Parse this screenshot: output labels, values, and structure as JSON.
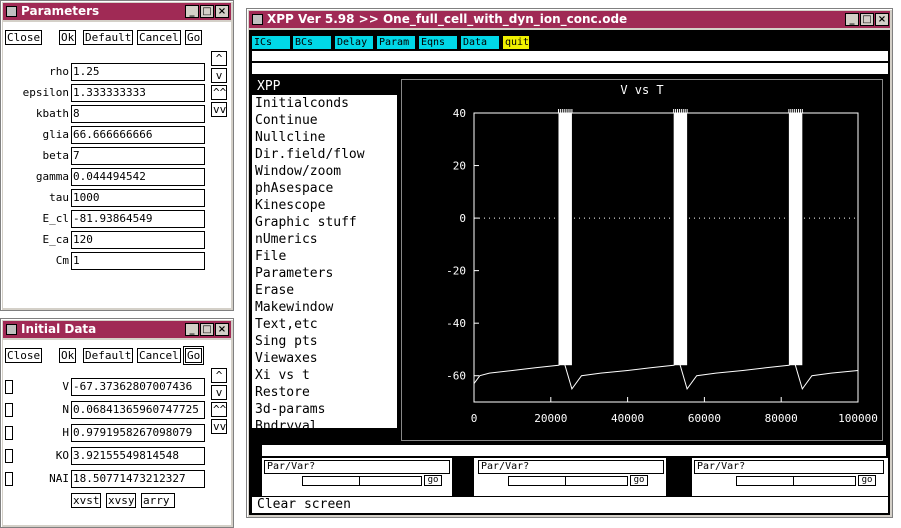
{
  "params_window": {
    "title": "Parameters",
    "buttons": {
      "close": "Close",
      "ok": "Ok",
      "default": "Default",
      "cancel": "Cancel",
      "go": "Go"
    },
    "scroll": {
      "up": "^",
      "down": "v",
      "page_up": "^^",
      "page_down": "vv"
    },
    "items": [
      {
        "name": "rho",
        "value": "1.25"
      },
      {
        "name": "epsilon",
        "value": "1.333333333"
      },
      {
        "name": "kbath",
        "value": "8"
      },
      {
        "name": "glia",
        "value": "66.666666666"
      },
      {
        "name": "beta",
        "value": "7"
      },
      {
        "name": "gamma",
        "value": "0.044494542"
      },
      {
        "name": "tau",
        "value": "1000"
      },
      {
        "name": "E_cl",
        "value": "-81.93864549"
      },
      {
        "name": "E_ca",
        "value": "120"
      },
      {
        "name": "Cm",
        "value": "1"
      }
    ]
  },
  "init_window": {
    "title": "Initial Data",
    "buttons": {
      "close": "Close",
      "ok": "Ok",
      "default": "Default",
      "cancel": "Cancel",
      "go": "Go"
    },
    "scroll": {
      "up": "^",
      "down": "v",
      "page_up": "^^",
      "page_down": "vv"
    },
    "items": [
      {
        "name": "V",
        "value": "-67.37362807007436"
      },
      {
        "name": "N",
        "value": "0.06841365960747725"
      },
      {
        "name": "H",
        "value": "0.9791958267098079"
      },
      {
        "name": "KO",
        "value": "3.92155549814548"
      },
      {
        "name": "NAI",
        "value": "18.50771473212327"
      }
    ],
    "bottom_buttons": {
      "xvst": "xvst",
      "xvsy": "xvsy",
      "arry": "arry"
    }
  },
  "xpp_window": {
    "title": "XPP Ver 5.98 >> One_full_cell_with_dyn_ion_conc.ode",
    "menubar": [
      "ICs",
      "BCs",
      "Delay",
      "Param",
      "Eqns",
      "Data",
      "quit"
    ],
    "menu_title": "XPP",
    "menu_items": [
      "Initialconds",
      "Continue",
      "Nullcline",
      "Dir.field/flow",
      "Window/zoom",
      "phAsespace",
      "Kinescope",
      "Graphic stuff",
      "nUmerics",
      "File",
      "Parameters",
      "Erase",
      "Makewindow",
      "Text,etc",
      "Sing pts",
      "Viewaxes",
      "Xi vs t",
      "Restore",
      "3d-params",
      "Bndryval"
    ],
    "sliders": [
      {
        "label": "Par/Var?",
        "go": "go"
      },
      {
        "label": "Par/Var?",
        "go": "go"
      },
      {
        "label": "Par/Var?",
        "go": "go"
      }
    ],
    "status": "Clear screen"
  },
  "colors": {
    "titlebar": "#a02a55",
    "menubar_button": "#00d8e8",
    "quit_button": "#f0f000",
    "plot_bg": "#000000",
    "plot_fg": "#ffffff"
  },
  "chart_data": {
    "type": "line",
    "title": "V vs T",
    "xlim": [
      0,
      100000
    ],
    "ylim": [
      -70,
      40
    ],
    "xticks": [
      0,
      20000,
      40000,
      60000,
      80000,
      100000
    ],
    "yticks": [
      40,
      20,
      0,
      -20,
      -40,
      -60
    ],
    "grid": false,
    "zero_line": "dotted",
    "series": [
      {
        "x": [
          0,
          1500,
          4000,
          10000,
          16000,
          22000,
          23500,
          25500,
          28000,
          33000,
          40000,
          46000,
          52000,
          53500,
          55500,
          58000,
          63000,
          70000,
          76000,
          82000,
          83500,
          85500,
          88000,
          93000,
          100000
        ],
        "y": [
          -63,
          -60,
          -59,
          -58,
          -57,
          -56,
          -55,
          -65,
          -60,
          -59,
          -58,
          -57,
          -56,
          -55,
          -65,
          -60,
          -59,
          -58,
          -57,
          -56,
          -55,
          -65,
          -60,
          -59,
          -58
        ]
      }
    ],
    "bursts": [
      {
        "x_start": 22000,
        "x_end": 25500,
        "y_top": 40
      },
      {
        "x_start": 52000,
        "x_end": 55500,
        "y_top": 40
      },
      {
        "x_start": 82000,
        "x_end": 85500,
        "y_top": 40
      }
    ]
  }
}
